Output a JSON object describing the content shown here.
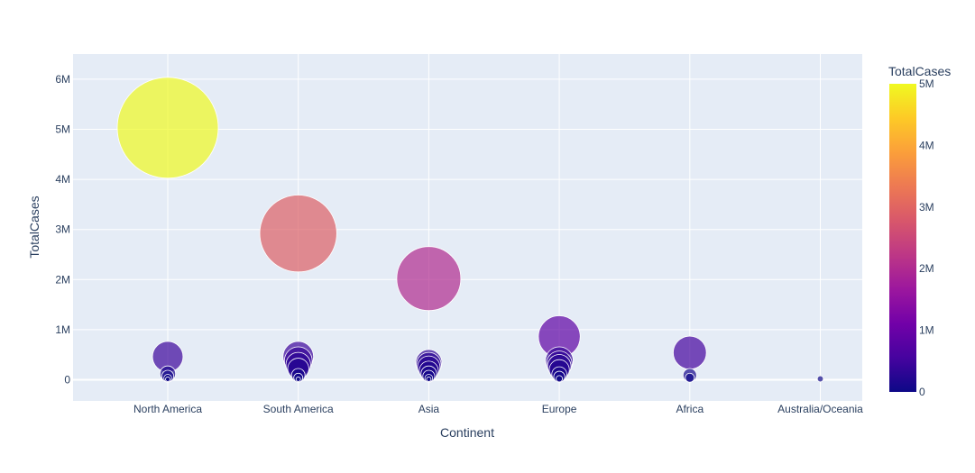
{
  "chart_data": {
    "type": "scatter",
    "subtype": "bubble",
    "xlabel": "Continent",
    "ylabel": "TotalCases",
    "categories": [
      "North America",
      "South America",
      "Asia",
      "Europe",
      "Africa",
      "Australia/Oceania"
    ],
    "y_ticks": [
      {
        "value": 0,
        "label": "0"
      },
      {
        "value": 1000000,
        "label": "1M"
      },
      {
        "value": 2000000,
        "label": "2M"
      },
      {
        "value": 3000000,
        "label": "3M"
      },
      {
        "value": 4000000,
        "label": "4M"
      },
      {
        "value": 5000000,
        "label": "5M"
      },
      {
        "value": 6000000,
        "label": "6M"
      }
    ],
    "ylim": [
      -400000,
      6500000
    ],
    "grid": true,
    "colorbar": {
      "title": "TotalCases",
      "range": [
        0,
        5000000
      ],
      "ticks": [
        {
          "value": 0,
          "label": "0"
        },
        {
          "value": 1000000,
          "label": "1M"
        },
        {
          "value": 2000000,
          "label": "2M"
        },
        {
          "value": 3000000,
          "label": "3M"
        },
        {
          "value": 4000000,
          "label": "4M"
        },
        {
          "value": 5000000,
          "label": "5M"
        }
      ],
      "colorscale": [
        "#0d0887",
        "#46039f",
        "#7201a8",
        "#9c179e",
        "#bd3786",
        "#d8576b",
        "#ed7953",
        "#fb9f3a",
        "#fdca26",
        "#f0f921"
      ]
    },
    "size_max_value": 5030000,
    "points": [
      {
        "category": "North America",
        "y": 5030000
      },
      {
        "category": "North America",
        "y": 460000
      },
      {
        "category": "North America",
        "y": 120000
      },
      {
        "category": "North America",
        "y": 70000
      },
      {
        "category": "North America",
        "y": 30000
      },
      {
        "category": "North America",
        "y": 10000
      },
      {
        "category": "South America",
        "y": 2920000
      },
      {
        "category": "South America",
        "y": 460000
      },
      {
        "category": "South America",
        "y": 380000
      },
      {
        "category": "South America",
        "y": 300000
      },
      {
        "category": "South America",
        "y": 220000
      },
      {
        "category": "South America",
        "y": 90000
      },
      {
        "category": "South America",
        "y": 40000
      },
      {
        "category": "South America",
        "y": 10000
      },
      {
        "category": "Asia",
        "y": 2020000
      },
      {
        "category": "Asia",
        "y": 340000
      },
      {
        "category": "Asia",
        "y": 300000
      },
      {
        "category": "Asia",
        "y": 250000
      },
      {
        "category": "Asia",
        "y": 180000
      },
      {
        "category": "Asia",
        "y": 120000
      },
      {
        "category": "Asia",
        "y": 70000
      },
      {
        "category": "Asia",
        "y": 30000
      },
      {
        "category": "Asia",
        "y": 10000
      },
      {
        "category": "Europe",
        "y": 860000
      },
      {
        "category": "Europe",
        "y": 380000
      },
      {
        "category": "Europe",
        "y": 320000
      },
      {
        "category": "Europe",
        "y": 270000
      },
      {
        "category": "Europe",
        "y": 200000
      },
      {
        "category": "Europe",
        "y": 110000
      },
      {
        "category": "Europe",
        "y": 60000
      },
      {
        "category": "Europe",
        "y": 20000
      },
      {
        "category": "Africa",
        "y": 540000
      },
      {
        "category": "Africa",
        "y": 90000
      },
      {
        "category": "Africa",
        "y": 40000
      },
      {
        "category": "Australia/Oceania",
        "y": 18000
      }
    ]
  }
}
